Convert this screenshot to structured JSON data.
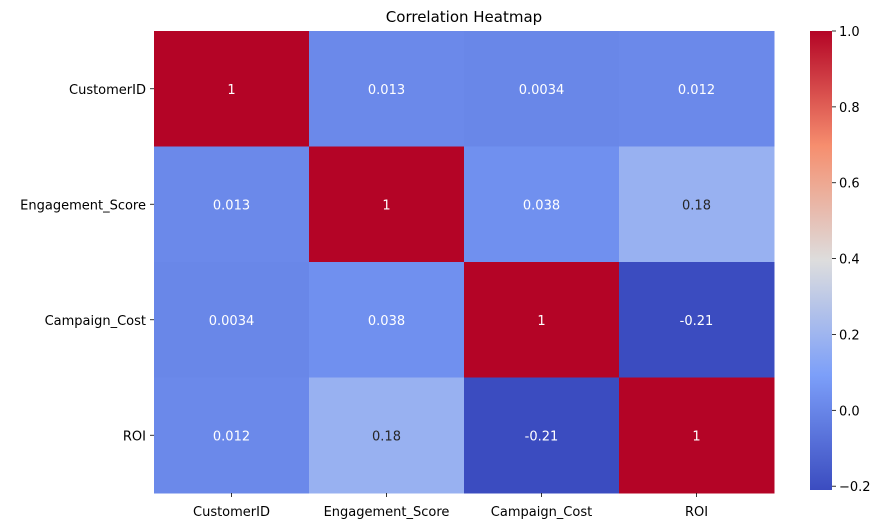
{
  "chart_data": {
    "type": "heatmap",
    "title": "Correlation Heatmap",
    "x_categories": [
      "CustomerID",
      "Engagement_Score",
      "Campaign_Cost",
      "ROI"
    ],
    "y_categories": [
      "CustomerID",
      "Engagement_Score",
      "Campaign_Cost",
      "ROI"
    ],
    "values": [
      [
        1,
        0.013,
        0.0034,
        0.012
      ],
      [
        0.013,
        1,
        0.038,
        0.18
      ],
      [
        0.0034,
        0.038,
        1,
        -0.21
      ],
      [
        0.012,
        0.18,
        -0.21,
        1
      ]
    ],
    "annotations": [
      [
        "1",
        "0.013",
        "0.0034",
        "0.012"
      ],
      [
        "0.013",
        "1",
        "0.038",
        "0.18"
      ],
      [
        "0.0034",
        "0.038",
        "1",
        "-0.21"
      ],
      [
        "0.012",
        "0.18",
        "-0.21",
        "1"
      ]
    ],
    "colormap": "coolwarm",
    "colorbar": {
      "range": [
        -0.21,
        1.0
      ],
      "ticks": [
        -0.2,
        0.0,
        0.2,
        0.4,
        0.6,
        0.8,
        1.0
      ],
      "tick_labels": [
        "−0.2",
        "0.0",
        "0.2",
        "0.4",
        "0.6",
        "0.8",
        "1.0"
      ],
      "placement": "right"
    }
  }
}
